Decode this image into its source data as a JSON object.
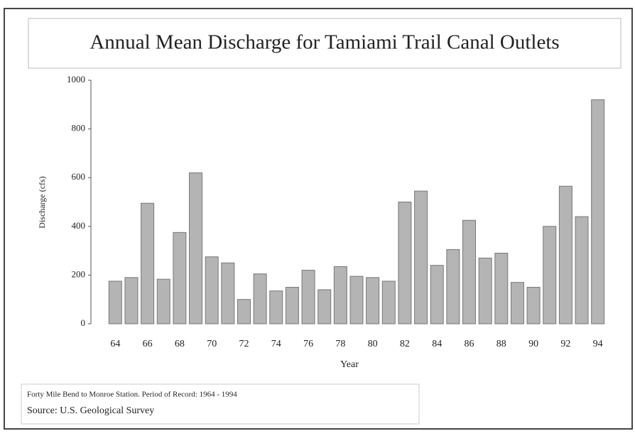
{
  "chart_data": {
    "type": "bar",
    "title": "Annual Mean Discharge for Tamiami Trail Canal Outlets",
    "y_label": "Discharge (cfs)",
    "x_label": "Year",
    "note": "Forty Mile Bend to Monroe Station. Period of Record:  1964 - 1994",
    "source": "Source:  U.S. Geological Survey",
    "categories": [
      "64",
      null,
      "66",
      null,
      "68",
      null,
      "70",
      null,
      "72",
      null,
      "74",
      null,
      "76",
      null,
      "78",
      null,
      "80",
      null,
      "82",
      null,
      "84",
      null,
      "86",
      null,
      "88",
      null,
      "90",
      null,
      "92",
      null,
      "94"
    ],
    "values": [
      175,
      190,
      495,
      183,
      375,
      620,
      275,
      250,
      100,
      205,
      135,
      150,
      220,
      140,
      235,
      195,
      190,
      175,
      500,
      545,
      240,
      305,
      425,
      270,
      290,
      170,
      150,
      400,
      565,
      440,
      920
    ],
    "color": "#b4b4b4",
    "ylim": [
      0,
      1000
    ],
    "yticks": [
      0,
      200,
      400,
      600,
      800,
      1000
    ],
    "grid": false
  }
}
